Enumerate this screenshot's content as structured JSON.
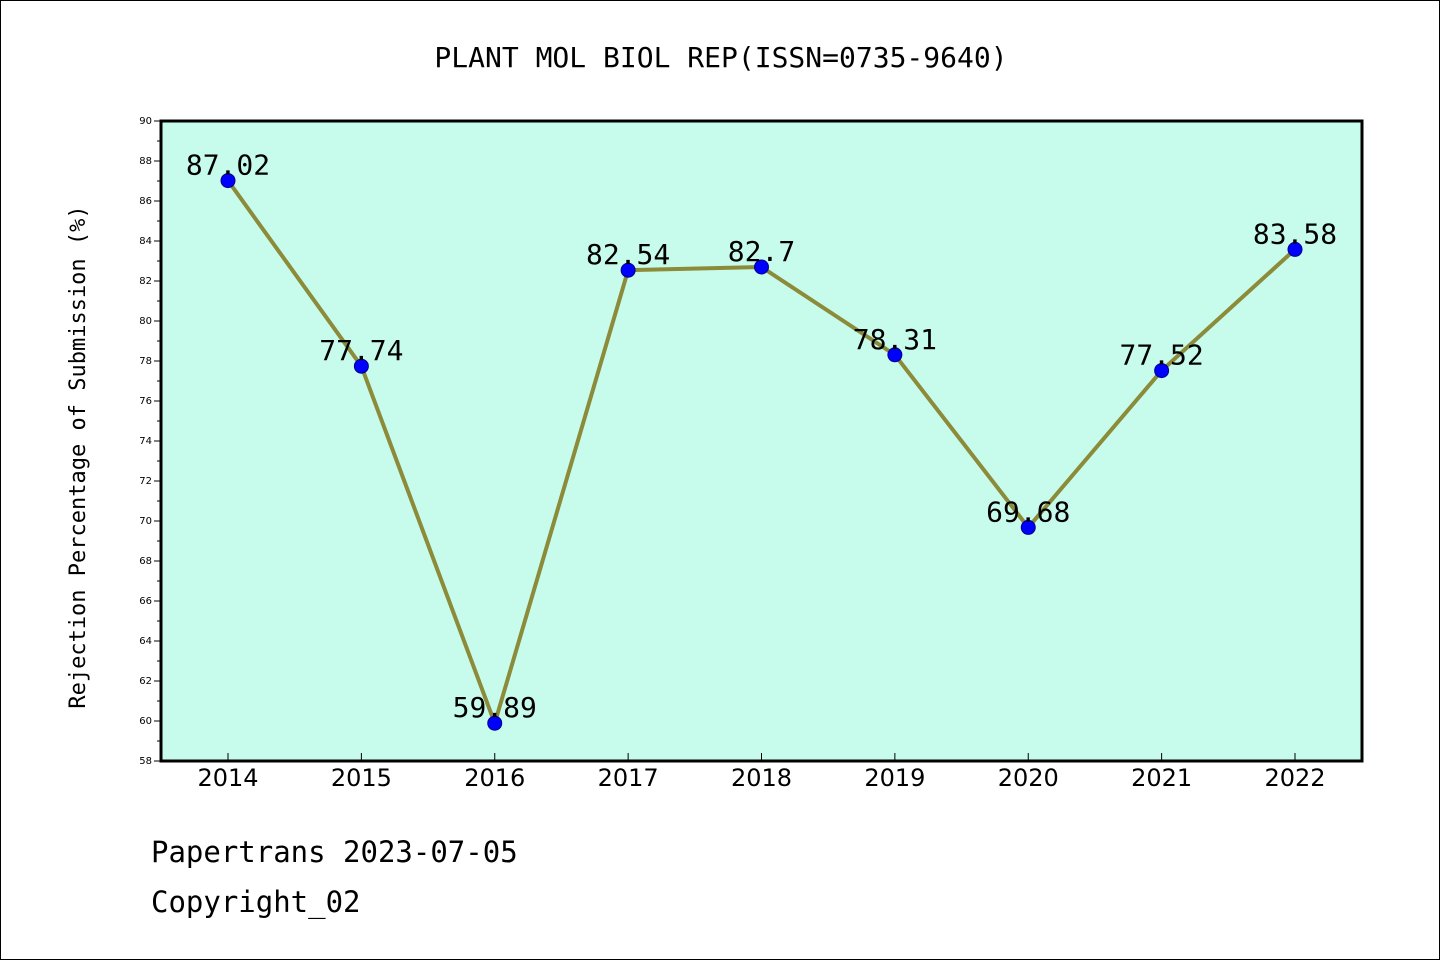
{
  "chart_data": {
    "type": "line",
    "title": "PLANT MOL BIOL REP(ISSN=0735-9640)",
    "xlabel": "",
    "ylabel": "Rejection Percentage of Submission (%)",
    "categories": [
      "2014",
      "2015",
      "2016",
      "2017",
      "2018",
      "2019",
      "2020",
      "2021",
      "2022"
    ],
    "series": [
      {
        "values": [
          87.02,
          77.74,
          59.89,
          82.54,
          82.7,
          78.31,
          69.68,
          77.52,
          83.58
        ],
        "labels": [
          "87.02",
          "77.74",
          "59.89",
          "82.54",
          "82.7",
          "78.31",
          "69.68",
          "77.52",
          "83.58"
        ]
      }
    ],
    "ylim": [
      58,
      90
    ],
    "yticks": [
      "58",
      "60",
      "62",
      "64",
      "66",
      "68",
      "70",
      "72",
      "74",
      "76",
      "78",
      "80",
      "82",
      "84",
      "86",
      "88",
      "90"
    ],
    "grid": false,
    "legend": "none",
    "colors": {
      "plot_background": "#c7fcec",
      "line": "#8b8b3a",
      "marker": "#0000ff",
      "axes": "#000000"
    }
  },
  "footer": {
    "line1": "Papertrans 2023-07-05",
    "line2": "Copyright_02"
  }
}
